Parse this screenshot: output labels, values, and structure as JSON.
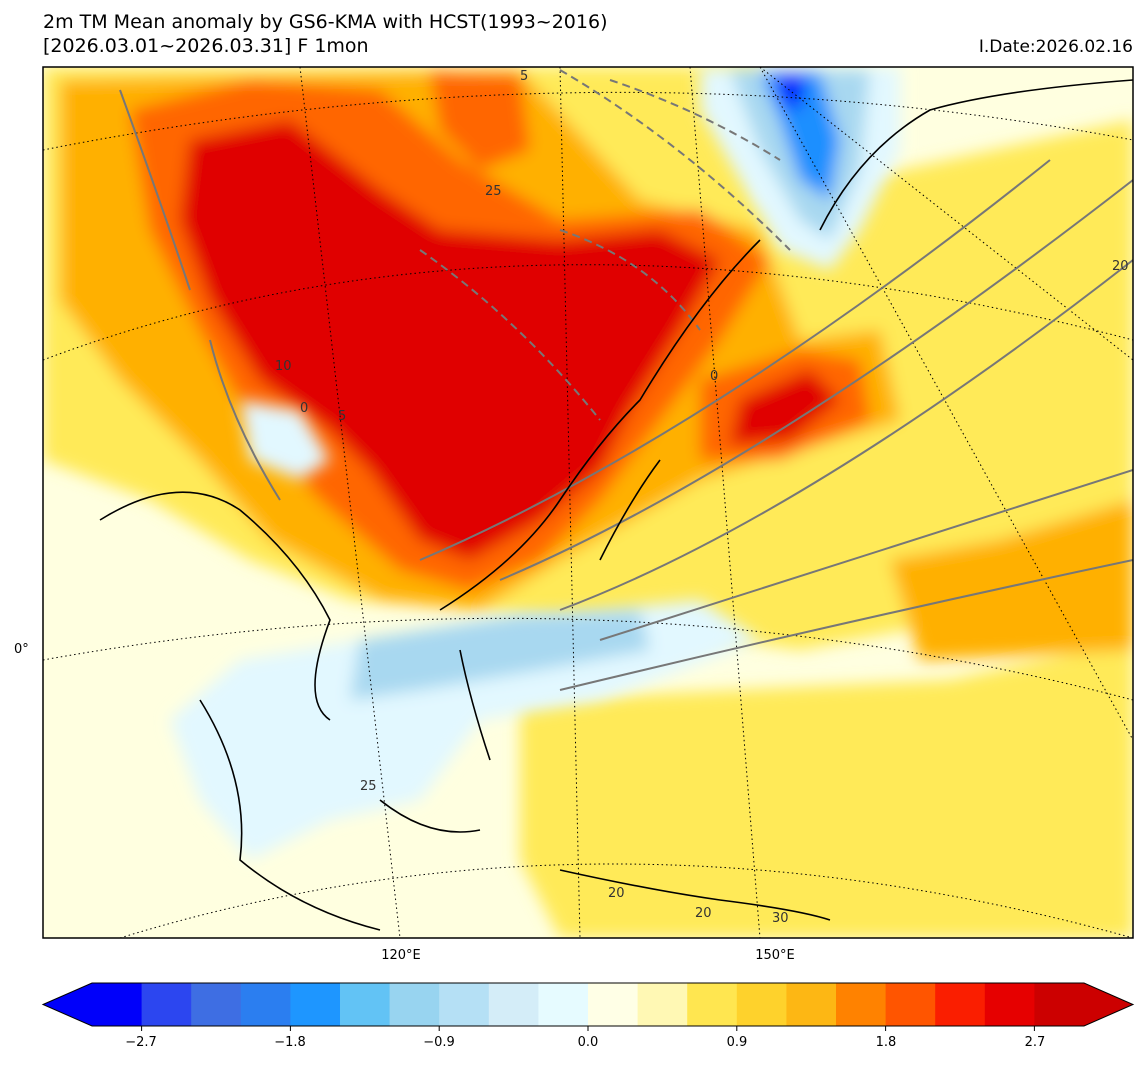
{
  "header": {
    "title_line1": "2m TM Mean anomaly by GS6-KMA with HCST(1993~2016)",
    "title_line2": "[2026.03.01~2026.03.31] F 1mon",
    "init_date": "I.Date:2026.02.16"
  },
  "map": {
    "lon_labels": [
      "120°E",
      "150°E"
    ],
    "lat_labels": [
      "0°"
    ],
    "contour_labels": [
      "0",
      "5",
      "10",
      "20",
      "25",
      "30"
    ],
    "colors": {
      "background": "#ffffe0",
      "warm_light": "#ffea59",
      "warm_mid": "#ffb000",
      "warm_strong": "#ff6600",
      "warm_max": "#e00000",
      "cool_light": "#e2f8ff",
      "cool_mid": "#a8d8f0",
      "cool_strong": "#1a8fff",
      "cool_max": "#0000ff"
    }
  },
  "colorbar": {
    "colors": [
      "#0000fa",
      "#2c46f0",
      "#3e6ee3",
      "#2b7ef0",
      "#1e96ff",
      "#62c3f5",
      "#98d4f0",
      "#b5e0f5",
      "#d4edf8",
      "#e6fbff",
      "#ffffe6",
      "#fff8b4",
      "#ffe650",
      "#fed22c",
      "#fdb714",
      "#ff8200",
      "#ff5500",
      "#fa1e00",
      "#e60000",
      "#cc0000"
    ],
    "tick_labels": [
      "−2.7",
      "−1.8",
      "−0.9",
      "0.0",
      "0.9",
      "1.8",
      "2.7"
    ]
  }
}
